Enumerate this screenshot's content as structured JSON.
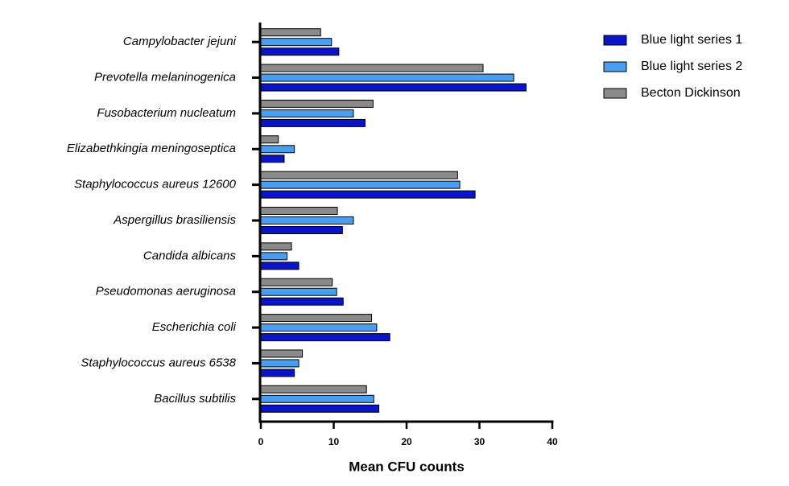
{
  "chart_data": {
    "type": "bar",
    "orientation": "horizontal",
    "x_label": "Mean CFU counts",
    "categories": [
      "Campylobacter jejuni",
      "Prevotella melaninogenica",
      "Fusobacterium nucleatum",
      "Elizabethkingia meningoseptica",
      "Staphylococcus aureus 12600",
      "Aspergillus brasiliensis",
      "Candida albicans",
      "Pseudomonas aeruginosa",
      "Escherichia coli",
      "Staphylococcus aureus 6538",
      "Bacillus subtilis"
    ],
    "series": [
      {
        "name": "Blue light series 1",
        "color": "#0a14c8",
        "values": [
          10.7,
          36.4,
          14.3,
          3.2,
          29.4,
          11.2,
          5.2,
          11.3,
          17.7,
          4.6,
          16.2
        ]
      },
      {
        "name": "Blue light series 2",
        "color": "#4a9ef0",
        "values": [
          9.7,
          34.7,
          12.7,
          4.6,
          27.3,
          12.7,
          3.6,
          10.4,
          15.9,
          5.2,
          15.5
        ]
      },
      {
        "name": "Becton Dickinson",
        "color": "#8a8a8a",
        "values": [
          8.2,
          30.5,
          15.4,
          2.4,
          27.0,
          10.5,
          4.2,
          9.8,
          15.2,
          5.7,
          14.5
        ]
      }
    ],
    "xlim": [
      0,
      40
    ],
    "xticks": [
      0,
      10,
      20,
      30,
      40
    ],
    "legend": "right"
  }
}
